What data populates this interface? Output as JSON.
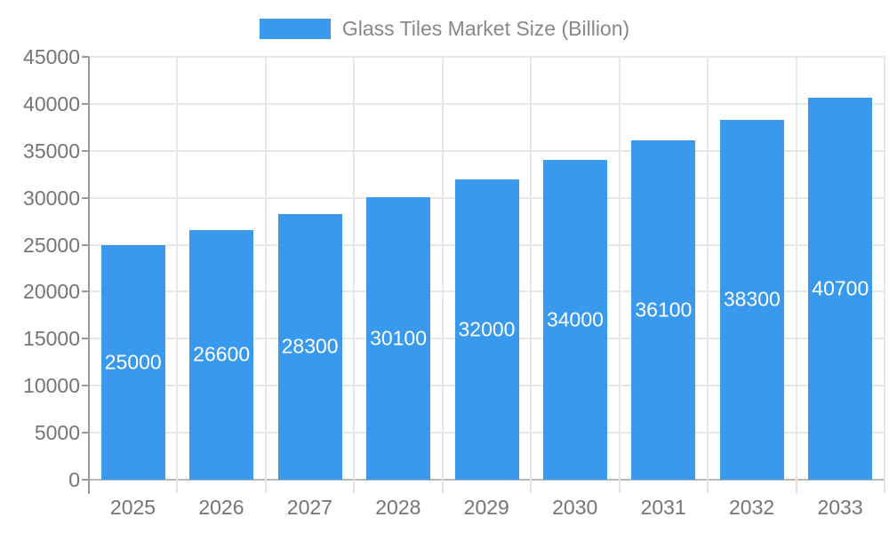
{
  "chart_data": {
    "type": "bar",
    "title": "Glass Tiles Market Size (Billion)",
    "series": [
      {
        "name": "Glass Tiles Market Size (Billion)",
        "values": [
          25000,
          26600,
          28300,
          30100,
          32000,
          34000,
          36100,
          38300,
          40700
        ]
      }
    ],
    "categories": [
      "2025",
      "2026",
      "2027",
      "2028",
      "2029",
      "2030",
      "2031",
      "2032",
      "2033"
    ],
    "xlabel": "",
    "ylabel": "",
    "ylim": [
      0,
      45000
    ],
    "ytick_step": 5000,
    "yticks": [
      0,
      5000,
      10000,
      15000,
      20000,
      25000,
      30000,
      35000,
      40000,
      45000
    ],
    "grid": true,
    "legend_position": "top",
    "data_labels": "inside-center",
    "colors": {
      "bar": "#3999ec",
      "bar_label": "#ffffff",
      "axis_text": "#757575",
      "legend_text": "#888888",
      "gridline": "#e7e7e7",
      "axis_line": "#9a9a9a",
      "baseline": "#b8b8b8",
      "category_tick": "#e2e2e2",
      "background": "#ffffff"
    }
  }
}
